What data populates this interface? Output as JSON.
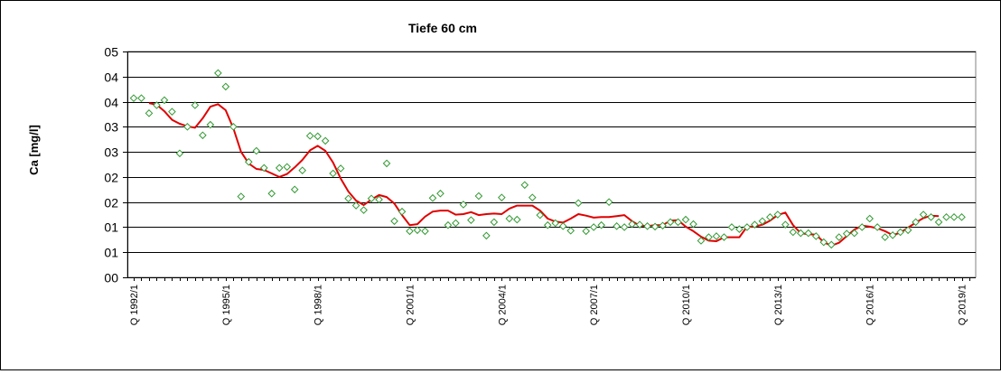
{
  "chart_data": {
    "type": "line",
    "title": "Tiefe  60 cm",
    "xlabel": "",
    "ylabel": "Ca [mg/l]",
    "y_ticks": [
      "00",
      "01",
      "01",
      "02",
      "02",
      "03",
      "03",
      "04",
      "04",
      "05"
    ],
    "ylim": [
      0,
      4.5
    ],
    "xlim": [
      0,
      109
    ],
    "grid": true,
    "x_tick_labels": [
      {
        "index": 0,
        "label": "Q 1992/1"
      },
      {
        "index": 12,
        "label": "Q 1995/1"
      },
      {
        "index": 24,
        "label": "Q 1998/1"
      },
      {
        "index": 36,
        "label": "Q 2001/1"
      },
      {
        "index": 48,
        "label": "Q 2004/1"
      },
      {
        "index": 60,
        "label": "Q 2007/1"
      },
      {
        "index": 72,
        "label": "Q 2010/1"
      },
      {
        "index": 84,
        "label": "Q 2013/1"
      },
      {
        "index": 96,
        "label": "Q 2016/1"
      },
      {
        "index": 108,
        "label": "Q 2019/1"
      }
    ],
    "series": [
      {
        "kind": "scatter",
        "color": "#339933",
        "marker": "diamond",
        "points": [
          [
            0,
            3.57
          ],
          [
            1,
            3.57
          ],
          [
            2,
            3.27
          ],
          [
            3,
            3.43
          ],
          [
            4,
            3.53
          ],
          [
            5,
            3.3
          ],
          [
            6,
            2.47
          ],
          [
            7,
            3.0
          ],
          [
            8,
            3.43
          ],
          [
            9,
            2.83
          ],
          [
            10,
            3.04
          ],
          [
            11,
            4.07
          ],
          [
            12,
            3.8
          ],
          [
            13,
            3.0
          ],
          [
            14,
            1.61
          ],
          [
            15,
            2.3
          ],
          [
            16,
            2.52
          ],
          [
            17,
            2.18
          ],
          [
            18,
            1.67
          ],
          [
            19,
            2.18
          ],
          [
            20,
            2.2
          ],
          [
            21,
            1.75
          ],
          [
            22,
            2.13
          ],
          [
            23,
            2.82
          ],
          [
            24,
            2.81
          ],
          [
            25,
            2.72
          ],
          [
            26,
            2.07
          ],
          [
            27,
            2.17
          ],
          [
            28,
            1.57
          ],
          [
            29,
            1.43
          ],
          [
            30,
            1.34
          ],
          [
            31,
            1.57
          ],
          [
            32,
            1.55
          ],
          [
            33,
            2.27
          ],
          [
            34,
            1.12
          ],
          [
            35,
            1.31
          ],
          [
            36,
            0.92
          ],
          [
            37,
            0.94
          ],
          [
            38,
            0.92
          ],
          [
            39,
            1.58
          ],
          [
            40,
            1.67
          ],
          [
            41,
            1.04
          ],
          [
            42,
            1.08
          ],
          [
            43,
            1.45
          ],
          [
            44,
            1.14
          ],
          [
            45,
            1.62
          ],
          [
            46,
            0.83
          ],
          [
            47,
            1.1
          ],
          [
            48,
            1.59
          ],
          [
            49,
            1.17
          ],
          [
            50,
            1.15
          ],
          [
            51,
            1.84
          ],
          [
            52,
            1.59
          ],
          [
            53,
            1.24
          ],
          [
            54,
            1.04
          ],
          [
            55,
            1.08
          ],
          [
            56,
            1.02
          ],
          [
            57,
            0.93
          ],
          [
            58,
            1.48
          ],
          [
            59,
            0.92
          ],
          [
            60,
            1.0
          ],
          [
            61,
            1.04
          ],
          [
            62,
            1.5
          ],
          [
            63,
            1.02
          ],
          [
            64,
            1.0
          ],
          [
            65,
            1.06
          ],
          [
            66,
            1.05
          ],
          [
            67,
            1.02
          ],
          [
            68,
            1.01
          ],
          [
            69,
            1.03
          ],
          [
            70,
            1.1
          ],
          [
            71,
            1.1
          ],
          [
            72,
            1.15
          ],
          [
            73,
            1.06
          ],
          [
            74,
            0.73
          ],
          [
            75,
            0.8
          ],
          [
            76,
            0.82
          ],
          [
            77,
            0.8
          ],
          [
            78,
            1.0
          ],
          [
            79,
            0.96
          ],
          [
            80,
            1.0
          ],
          [
            81,
            1.05
          ],
          [
            82,
            1.12
          ],
          [
            83,
            1.2
          ],
          [
            84,
            1.25
          ],
          [
            85,
            1.05
          ],
          [
            86,
            0.9
          ],
          [
            87,
            0.88
          ],
          [
            88,
            0.88
          ],
          [
            89,
            0.82
          ],
          [
            90,
            0.7
          ],
          [
            91,
            0.65
          ],
          [
            92,
            0.8
          ],
          [
            93,
            0.87
          ],
          [
            94,
            0.88
          ],
          [
            95,
            1.0
          ],
          [
            96,
            1.17
          ],
          [
            97,
            1.0
          ],
          [
            98,
            0.8
          ],
          [
            99,
            0.84
          ],
          [
            100,
            0.9
          ],
          [
            101,
            0.94
          ],
          [
            102,
            1.1
          ],
          [
            103,
            1.25
          ],
          [
            104,
            1.2
          ],
          [
            105,
            1.1
          ],
          [
            106,
            1.2
          ],
          [
            107,
            1.2
          ],
          [
            108,
            1.2
          ]
        ]
      },
      {
        "kind": "line",
        "color": "#e00000",
        "points": [
          [
            2,
            3.47
          ],
          [
            3,
            3.44
          ],
          [
            4,
            3.31
          ],
          [
            5,
            3.14
          ],
          [
            6,
            3.06
          ],
          [
            7,
            3.01
          ],
          [
            8,
            2.98
          ],
          [
            9,
            3.17
          ],
          [
            10,
            3.4
          ],
          [
            11,
            3.45
          ],
          [
            12,
            3.33
          ],
          [
            13,
            2.97
          ],
          [
            14,
            2.5
          ],
          [
            15,
            2.27
          ],
          [
            16,
            2.16
          ],
          [
            17,
            2.14
          ],
          [
            18,
            2.07
          ],
          [
            19,
            2.0
          ],
          [
            20,
            2.06
          ],
          [
            21,
            2.19
          ],
          [
            22,
            2.34
          ],
          [
            23,
            2.53
          ],
          [
            24,
            2.62
          ],
          [
            25,
            2.52
          ],
          [
            26,
            2.29
          ],
          [
            27,
            1.97
          ],
          [
            28,
            1.71
          ],
          [
            29,
            1.53
          ],
          [
            30,
            1.44
          ],
          [
            31,
            1.55
          ],
          [
            32,
            1.64
          ],
          [
            33,
            1.6
          ],
          [
            34,
            1.47
          ],
          [
            35,
            1.24
          ],
          [
            36,
            1.04
          ],
          [
            37,
            1.06
          ],
          [
            38,
            1.21
          ],
          [
            39,
            1.31
          ],
          [
            40,
            1.33
          ],
          [
            41,
            1.33
          ],
          [
            42,
            1.25
          ],
          [
            43,
            1.26
          ],
          [
            44,
            1.3
          ],
          [
            45,
            1.24
          ],
          [
            46,
            1.26
          ],
          [
            47,
            1.27
          ],
          [
            48,
            1.26
          ],
          [
            49,
            1.37
          ],
          [
            50,
            1.43
          ],
          [
            51,
            1.43
          ],
          [
            52,
            1.43
          ],
          [
            53,
            1.33
          ],
          [
            54,
            1.17
          ],
          [
            55,
            1.11
          ],
          [
            56,
            1.09
          ],
          [
            57,
            1.17
          ],
          [
            58,
            1.26
          ],
          [
            59,
            1.23
          ],
          [
            60,
            1.19
          ],
          [
            61,
            1.2
          ],
          [
            62,
            1.2
          ],
          [
            63,
            1.22
          ],
          [
            64,
            1.24
          ],
          [
            65,
            1.12
          ],
          [
            66,
            1.03
          ],
          [
            67,
            1.02
          ],
          [
            68,
            1.04
          ],
          [
            69,
            1.04
          ],
          [
            70,
            1.13
          ],
          [
            71,
            1.14
          ],
          [
            72,
            1.01
          ],
          [
            73,
            0.92
          ],
          [
            74,
            0.81
          ],
          [
            75,
            0.73
          ],
          [
            76,
            0.72
          ],
          [
            77,
            0.8
          ],
          [
            78,
            0.8
          ],
          [
            79,
            0.8
          ],
          [
            80,
            1.01
          ],
          [
            81,
            1.01
          ],
          [
            82,
            1.05
          ],
          [
            83,
            1.13
          ],
          [
            84,
            1.24
          ],
          [
            85,
            1.29
          ],
          [
            86,
            1.04
          ],
          [
            87,
            0.88
          ],
          [
            88,
            0.86
          ],
          [
            89,
            0.85
          ],
          [
            90,
            0.7
          ],
          [
            91,
            0.63
          ],
          [
            92,
            0.69
          ],
          [
            93,
            0.82
          ],
          [
            94,
            0.95
          ],
          [
            95,
            1.03
          ],
          [
            96,
            1.01
          ],
          [
            97,
            0.98
          ],
          [
            98,
            0.92
          ],
          [
            99,
            0.84
          ],
          [
            100,
            0.89
          ],
          [
            101,
            0.99
          ],
          [
            102,
            1.09
          ],
          [
            103,
            1.18
          ],
          [
            104,
            1.23
          ],
          [
            105,
            1.22
          ]
        ]
      }
    ]
  }
}
